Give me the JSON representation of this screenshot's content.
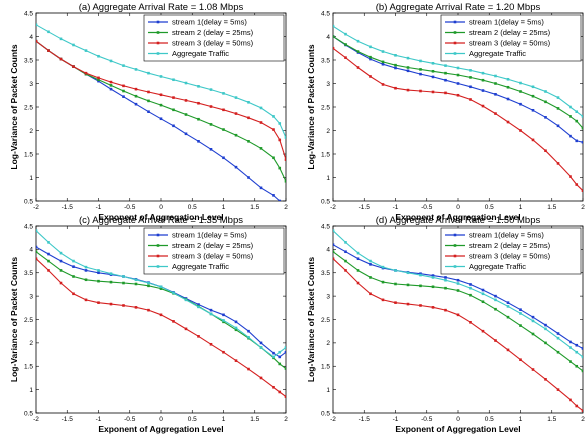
{
  "colors": {
    "stream1": "#1f3fd0",
    "stream2": "#1f9a2a",
    "stream3": "#d42020",
    "aggregate": "#3ec8c8"
  },
  "chart_data": [
    {
      "type": "line",
      "title": "(a) Aggregate Arrival Rate = 1.08 Mbps",
      "xlabel": "Exponent of Aggregation Level",
      "ylabel": "Log-Variance of Packet Counts",
      "xlim": [
        -2,
        2
      ],
      "ylim": [
        0.5,
        4.5
      ],
      "xticks": [
        "-2",
        "-1.5",
        "-1",
        "-0.5",
        "0",
        "0.5",
        "1",
        "1.5",
        "2"
      ],
      "yticks": [
        "0.5",
        "1",
        "1.5",
        "2",
        "2.5",
        "3",
        "3.5",
        "4",
        "4.5"
      ],
      "legend": "top-right",
      "grid": false,
      "x": [
        -2,
        -1.8,
        -1.6,
        -1.4,
        -1.2,
        -1,
        -0.8,
        -0.6,
        -0.4,
        -0.2,
        0,
        0.2,
        0.4,
        0.6,
        0.8,
        1,
        1.2,
        1.4,
        1.6,
        1.8,
        1.9,
        2
      ],
      "series": [
        {
          "name": "stream 1(delay =  5ms)",
          "values": [
            3.9,
            3.7,
            3.52,
            3.36,
            3.2,
            3.05,
            2.88,
            2.72,
            2.56,
            2.4,
            2.25,
            2.1,
            1.93,
            1.77,
            1.6,
            1.42,
            1.22,
            1.0,
            0.78,
            0.62,
            0.5,
            0.35
          ]
        },
        {
          "name": "stream 2 (delay = 25ms)",
          "values": [
            3.9,
            3.7,
            3.52,
            3.36,
            3.2,
            3.08,
            2.96,
            2.84,
            2.73,
            2.63,
            2.54,
            2.44,
            2.34,
            2.24,
            2.13,
            2.02,
            1.9,
            1.77,
            1.62,
            1.42,
            1.2,
            0.92
          ]
        },
        {
          "name": "stream 3 (delay = 50ms)",
          "values": [
            3.9,
            3.7,
            3.52,
            3.36,
            3.22,
            3.12,
            3.03,
            2.95,
            2.88,
            2.82,
            2.76,
            2.7,
            2.64,
            2.58,
            2.51,
            2.44,
            2.36,
            2.27,
            2.17,
            2.02,
            1.8,
            1.38
          ]
        },
        {
          "name": "Aggregate Traffic",
          "values": [
            4.25,
            4.1,
            3.95,
            3.82,
            3.7,
            3.58,
            3.48,
            3.38,
            3.3,
            3.22,
            3.15,
            3.08,
            3.01,
            2.94,
            2.87,
            2.79,
            2.7,
            2.6,
            2.48,
            2.3,
            2.15,
            1.85
          ]
        }
      ]
    },
    {
      "type": "line",
      "title": "(b) Aggregate Arrival Rate = 1.20 Mbps",
      "xlabel": "Exponent of Aggregation Level",
      "ylabel": "Log-Variance of Packet Counts",
      "xlim": [
        -2,
        2
      ],
      "ylim": [
        0.5,
        4.5
      ],
      "xticks": [
        "-2",
        "-1.5",
        "-1",
        "-0.5",
        "0",
        "0.5",
        "1",
        "1.5",
        "2"
      ],
      "yticks": [
        "0.5",
        "1",
        "1.5",
        "2",
        "2.5",
        "3",
        "3.5",
        "4",
        "4.5"
      ],
      "legend": "top-right",
      "grid": false,
      "x": [
        -2,
        -1.8,
        -1.6,
        -1.4,
        -1.2,
        -1,
        -0.8,
        -0.6,
        -0.4,
        -0.2,
        0,
        0.2,
        0.4,
        0.6,
        0.8,
        1,
        1.2,
        1.4,
        1.6,
        1.8,
        1.9,
        2
      ],
      "series": [
        {
          "name": "stream 1(delay =  5ms)",
          "values": [
            4.0,
            3.82,
            3.66,
            3.52,
            3.41,
            3.33,
            3.27,
            3.2,
            3.14,
            3.07,
            3.0,
            2.93,
            2.85,
            2.77,
            2.67,
            2.56,
            2.43,
            2.28,
            2.1,
            1.88,
            1.78,
            1.75
          ]
        },
        {
          "name": "stream 2 (delay = 25ms)",
          "values": [
            4.0,
            3.83,
            3.68,
            3.56,
            3.46,
            3.39,
            3.34,
            3.3,
            3.26,
            3.22,
            3.18,
            3.13,
            3.07,
            3.0,
            2.92,
            2.83,
            2.73,
            2.61,
            2.47,
            2.3,
            2.2,
            2.05
          ]
        },
        {
          "name": "stream 3 (delay = 50ms)",
          "values": [
            3.75,
            3.55,
            3.34,
            3.15,
            2.98,
            2.9,
            2.86,
            2.84,
            2.82,
            2.8,
            2.75,
            2.66,
            2.52,
            2.36,
            2.18,
            2.0,
            1.8,
            1.57,
            1.3,
            1.02,
            0.85,
            0.72
          ]
        },
        {
          "name": "Aggregate Traffic",
          "values": [
            4.22,
            4.05,
            3.9,
            3.78,
            3.68,
            3.6,
            3.54,
            3.48,
            3.43,
            3.38,
            3.33,
            3.28,
            3.22,
            3.16,
            3.09,
            3.01,
            2.93,
            2.83,
            2.7,
            2.5,
            2.4,
            2.3
          ]
        }
      ]
    },
    {
      "type": "line",
      "title": "(c) Aggregate Arrival Rate = 1.35 Mbps",
      "xlabel": "Exponent of Aggregation Level",
      "ylabel": "Log-Variance of Packet Counts",
      "xlim": [
        -2,
        2
      ],
      "ylim": [
        0.5,
        4.5
      ],
      "xticks": [
        "-2",
        "-1.5",
        "-1",
        "-0.5",
        "0",
        "0.5",
        "1",
        "1.5",
        "2"
      ],
      "yticks": [
        "0.5",
        "1",
        "1.5",
        "2",
        "2.5",
        "3",
        "3.5",
        "4",
        "4.5"
      ],
      "legend": "top-right",
      "grid": false,
      "x": [
        -2,
        -1.8,
        -1.6,
        -1.4,
        -1.2,
        -1,
        -0.8,
        -0.6,
        -0.4,
        -0.2,
        0,
        0.2,
        0.4,
        0.6,
        0.8,
        1,
        1.2,
        1.4,
        1.6,
        1.8,
        1.9,
        2
      ],
      "series": [
        {
          "name": "stream 1(delay =  5ms)",
          "values": [
            4.05,
            3.9,
            3.75,
            3.63,
            3.55,
            3.5,
            3.46,
            3.42,
            3.36,
            3.29,
            3.2,
            3.08,
            2.95,
            2.82,
            2.7,
            2.6,
            2.45,
            2.25,
            2.0,
            1.78,
            1.7,
            1.8
          ]
        },
        {
          "name": "stream 2 (delay = 25ms)",
          "values": [
            3.95,
            3.75,
            3.55,
            3.42,
            3.35,
            3.32,
            3.3,
            3.28,
            3.26,
            3.22,
            3.16,
            3.06,
            2.93,
            2.78,
            2.62,
            2.45,
            2.28,
            2.1,
            1.9,
            1.68,
            1.55,
            1.45
          ]
        },
        {
          "name": "stream 3 (delay = 50ms)",
          "values": [
            3.8,
            3.55,
            3.28,
            3.05,
            2.92,
            2.86,
            2.83,
            2.8,
            2.76,
            2.7,
            2.6,
            2.46,
            2.3,
            2.14,
            1.97,
            1.8,
            1.62,
            1.44,
            1.25,
            1.05,
            0.95,
            0.85
          ]
        },
        {
          "name": "Aggregate Traffic",
          "values": [
            4.4,
            4.15,
            3.92,
            3.75,
            3.62,
            3.55,
            3.48,
            3.42,
            3.35,
            3.28,
            3.2,
            3.07,
            2.92,
            2.77,
            2.62,
            2.48,
            2.32,
            2.12,
            1.9,
            1.7,
            1.8,
            1.9
          ]
        }
      ]
    },
    {
      "type": "line",
      "title": "(d) Aggregate Arrival Rate = 1.50 Mbps",
      "xlabel": "Exponent of Aggregation Level",
      "ylabel": "Log-Variance of Packet Counts",
      "xlim": [
        -2,
        2
      ],
      "ylim": [
        0.5,
        4.5
      ],
      "xticks": [
        "-2",
        "-1.5",
        "-1",
        "-0.5",
        "0",
        "0.5",
        "1",
        "1.5",
        "2"
      ],
      "yticks": [
        "0.5",
        "1",
        "1.5",
        "2",
        "2.5",
        "3",
        "3.5",
        "4",
        "4.5"
      ],
      "legend": "top-right",
      "grid": false,
      "x": [
        -2,
        -1.8,
        -1.6,
        -1.4,
        -1.2,
        -1,
        -0.8,
        -0.6,
        -0.4,
        -0.2,
        0,
        0.2,
        0.4,
        0.6,
        0.8,
        1,
        1.2,
        1.4,
        1.6,
        1.8,
        1.9,
        2
      ],
      "series": [
        {
          "name": "stream 1(delay =  5ms)",
          "values": [
            4.1,
            3.95,
            3.8,
            3.68,
            3.6,
            3.55,
            3.51,
            3.48,
            3.44,
            3.4,
            3.34,
            3.25,
            3.13,
            3.0,
            2.86,
            2.71,
            2.55,
            2.38,
            2.2,
            2.02,
            1.95,
            1.88
          ]
        },
        {
          "name": "stream 2 (delay = 25ms)",
          "values": [
            3.95,
            3.75,
            3.55,
            3.4,
            3.3,
            3.26,
            3.24,
            3.22,
            3.2,
            3.17,
            3.12,
            3.02,
            2.88,
            2.72,
            2.55,
            2.37,
            2.19,
            2.0,
            1.8,
            1.6,
            1.5,
            1.4
          ]
        },
        {
          "name": "stream 3 (delay = 50ms)",
          "values": [
            3.8,
            3.55,
            3.28,
            3.05,
            2.92,
            2.86,
            2.83,
            2.8,
            2.76,
            2.7,
            2.6,
            2.44,
            2.25,
            2.05,
            1.85,
            1.64,
            1.43,
            1.22,
            1.0,
            0.78,
            0.65,
            0.55
          ]
        },
        {
          "name": "Aggregate Traffic",
          "values": [
            4.4,
            4.15,
            3.92,
            3.75,
            3.62,
            3.55,
            3.5,
            3.45,
            3.4,
            3.34,
            3.27,
            3.17,
            3.05,
            2.92,
            2.78,
            2.63,
            2.47,
            2.3,
            2.1,
            1.9,
            1.8,
            1.7
          ]
        }
      ]
    }
  ]
}
